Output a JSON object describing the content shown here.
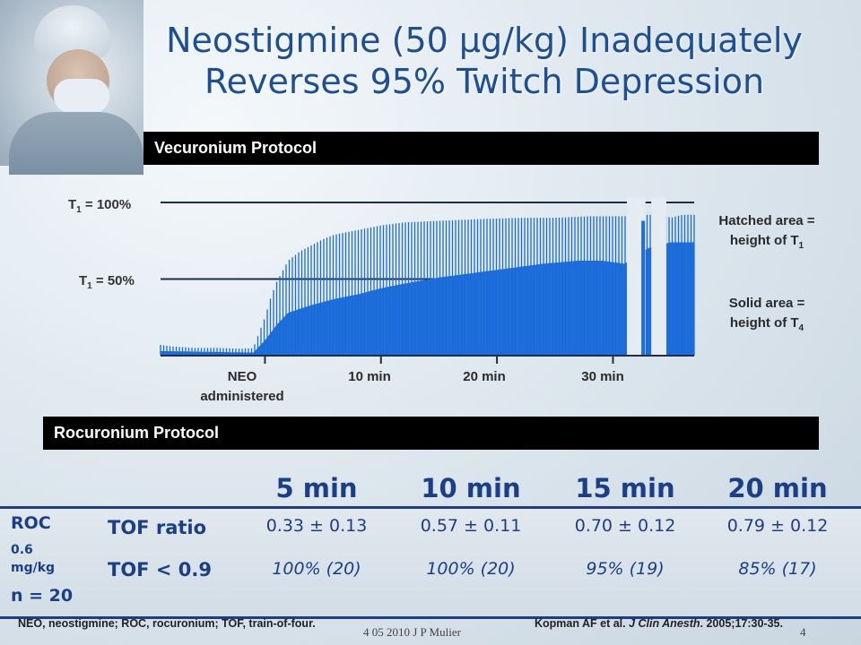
{
  "slide": {
    "title_line1": "Neostigmine (50 µg/kg) Inadequately",
    "title_line2": "Reverses 95% Twitch Depression",
    "vecuronium_label": "Vecuronium Protocol",
    "rocuronium_label": "Rocuronium Protocol",
    "footnote_left": "NEO, neostigmine; ROC, rocuronium; TOF, train-of-four.",
    "footnote_right_authors": "Kopman AF et al. ",
    "footnote_right_journal": "J Clin Anesth",
    "footnote_right_rest": ". 2005;17:30-35.",
    "footer_date": "4 05 2010 J P Mulier",
    "page_number": "4"
  },
  "chart_data": {
    "type": "bar",
    "y_labels": {
      "top": {
        "text": "T",
        "sub": "1",
        "suffix": " = 100%",
        "value": 100
      },
      "mid": {
        "text": "T",
        "sub": "1",
        "suffix": " = 50%",
        "value": 50
      }
    },
    "x_ticks": [
      {
        "label_line1": "NEO",
        "label_line2": "administered",
        "minute": 0
      },
      {
        "label_line1": "10 min",
        "label_line2": "",
        "minute": 10
      },
      {
        "label_line1": "20 min",
        "label_line2": "",
        "minute": 20
      },
      {
        "label_line1": "30 min",
        "label_line2": "",
        "minute": 30
      }
    ],
    "legend": {
      "hatched": {
        "line1": "Hatched area =",
        "line2": "height of T",
        "sub": "1"
      },
      "solid": {
        "line1": "Solid area =",
        "line2": "height of T",
        "sub": "4"
      }
    },
    "series_colors": {
      "t1": "#1a6bd1",
      "t4": "#1f6ee0"
    },
    "x_range_minutes": [
      -9,
      37
    ],
    "y_range_percent": [
      0,
      100
    ],
    "t1_percent": [
      [
        -9,
        7
      ],
      [
        -8,
        6
      ],
      [
        -6,
        5
      ],
      [
        -4,
        5
      ],
      [
        -2,
        4.5
      ],
      [
        -1,
        5
      ],
      [
        0,
        25
      ],
      [
        0.5,
        38
      ],
      [
        1,
        48
      ],
      [
        2,
        62
      ],
      [
        3,
        68
      ],
      [
        4,
        72
      ],
      [
        5,
        76
      ],
      [
        6,
        79
      ],
      [
        8,
        82
      ],
      [
        10,
        85
      ],
      [
        12,
        87
      ],
      [
        15,
        88
      ],
      [
        18,
        89
      ],
      [
        22,
        90
      ],
      [
        25,
        90
      ],
      [
        28,
        91
      ],
      [
        31,
        91
      ],
      [
        32,
        92
      ],
      [
        34,
        92
      ],
      [
        35,
        90
      ],
      [
        36,
        92
      ]
    ],
    "t4_percent": [
      [
        -9,
        3
      ],
      [
        -1,
        2
      ],
      [
        0,
        10
      ],
      [
        1,
        20
      ],
      [
        2,
        28
      ],
      [
        4,
        33
      ],
      [
        6,
        37
      ],
      [
        8,
        40
      ],
      [
        10,
        44
      ],
      [
        12,
        47
      ],
      [
        15,
        51
      ],
      [
        18,
        54
      ],
      [
        21,
        57
      ],
      [
        24,
        60
      ],
      [
        27,
        62
      ],
      [
        29,
        62
      ],
      [
        31,
        60
      ],
      [
        33,
        70
      ],
      [
        35,
        74
      ],
      [
        36,
        74
      ]
    ]
  },
  "table": {
    "headers": [
      "5 min",
      "10 min",
      "15 min",
      "20 min"
    ],
    "group_label_line1": "ROC",
    "group_label_line2": "0.6",
    "group_label_line3": "mg/kg",
    "group_label_line4": "n = 20",
    "rows": [
      {
        "label": "TOF ratio",
        "values": [
          "0.33 ± 0.13",
          "0.57 ± 0.11",
          "0.70 ± 0.12",
          "0.79 ± 0.12"
        ]
      },
      {
        "label": "TOF < 0.9",
        "values": [
          "100% (20)",
          "100% (20)",
          "95% (19)",
          "85% (17)"
        ]
      }
    ]
  }
}
